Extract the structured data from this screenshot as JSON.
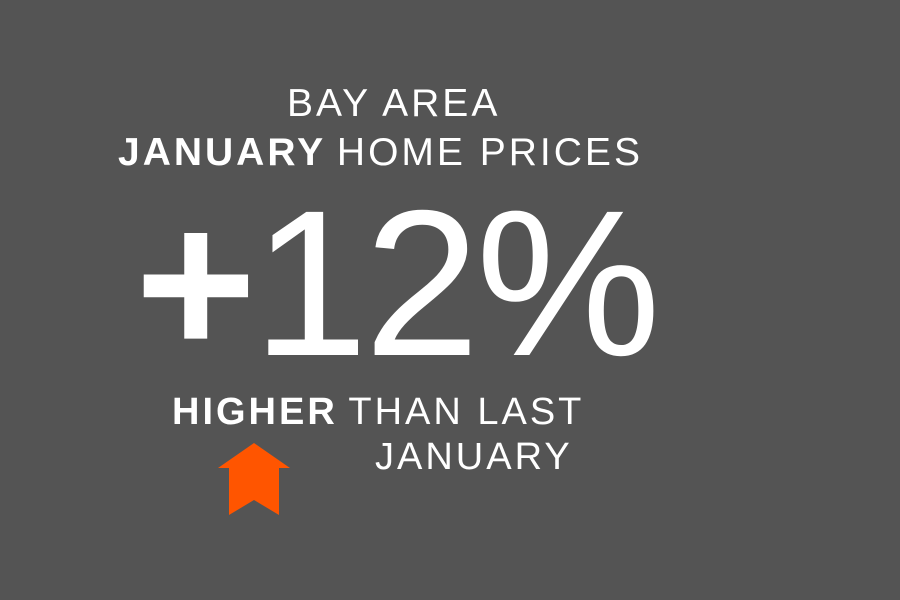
{
  "headline": {
    "line1": "BAY AREA",
    "line2_bold": "JANUARY",
    "line2_rest": "HOME PRICES"
  },
  "figure": {
    "sign": "+",
    "value": "12%"
  },
  "caption": {
    "bold": "HIGHER",
    "rest_line1": "THAN LAST",
    "rest_line2": "JANUARY"
  },
  "icons": {
    "arrow": "up-arrow-icon"
  },
  "colors": {
    "background": "#545454",
    "text": "#ffffff",
    "accent": "#ff5500"
  }
}
